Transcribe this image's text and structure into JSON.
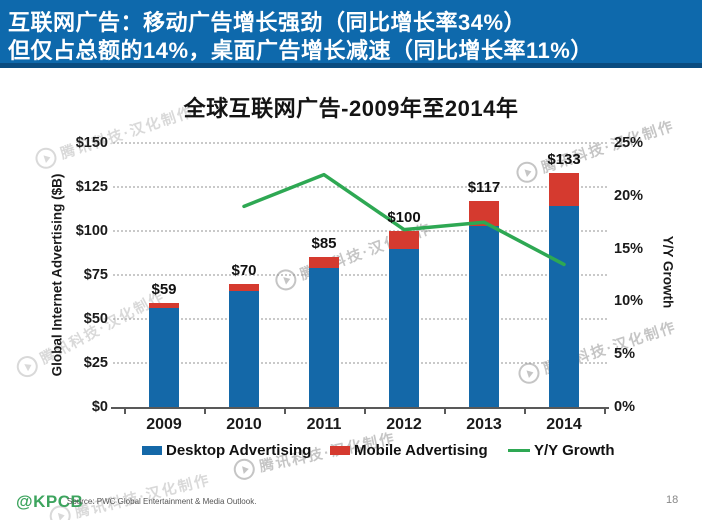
{
  "banner": {
    "line1": "互联网广告：移动广告增长强劲（同比增长率34%）",
    "line2": "但仅占总额的14%，桌面广告增长减速（同比增长率11%）",
    "bg_color": "#0E69AC",
    "border_color": "#0A4C80"
  },
  "title": "全球互联网广告-2009年至2014年",
  "chart_data": {
    "type": "bar",
    "subtype": "stacked bars with overlaid line on secondary axis",
    "categories": [
      "2009",
      "2010",
      "2011",
      "2012",
      "2013",
      "2014"
    ],
    "series": [
      {
        "name": "Desktop Advertising",
        "type": "bar",
        "color": "#1468A8",
        "values": [
          56,
          66,
          79,
          90,
          103,
          114
        ]
      },
      {
        "name": "Mobile Advertising",
        "type": "bar",
        "color": "#D53A2F",
        "values": [
          3,
          4,
          6,
          10,
          14,
          19
        ]
      },
      {
        "name": "Y/Y Growth",
        "type": "line",
        "color": "#2EA853",
        "axis": "right",
        "values": [
          null,
          19,
          22,
          16.8,
          17.5,
          13.5
        ]
      }
    ],
    "total_labels": [
      "$59",
      "$70",
      "$85",
      "$100",
      "$117",
      "$133"
    ],
    "left_axis": {
      "label": "Global Internet Advertising ($B)",
      "min": 0,
      "max": 150,
      "step": 25,
      "ticks": [
        "$0",
        "$25",
        "$50",
        "$75",
        "$100",
        "$125",
        "$150"
      ]
    },
    "right_axis": {
      "label": "Y/Y Growth",
      "min": 0,
      "max": 25,
      "step": 5,
      "ticks": [
        "0%",
        "5%",
        "10%",
        "15%",
        "20%",
        "25%"
      ]
    },
    "grid": "horizontal dotted",
    "legend_position": "bottom"
  },
  "footer": {
    "logo": "@KPCB",
    "source": "Source: PWC Global Entertainment & Media Outlook.",
    "page": "18"
  },
  "watermark": {
    "text": "腾讯科技·汉化制作"
  }
}
